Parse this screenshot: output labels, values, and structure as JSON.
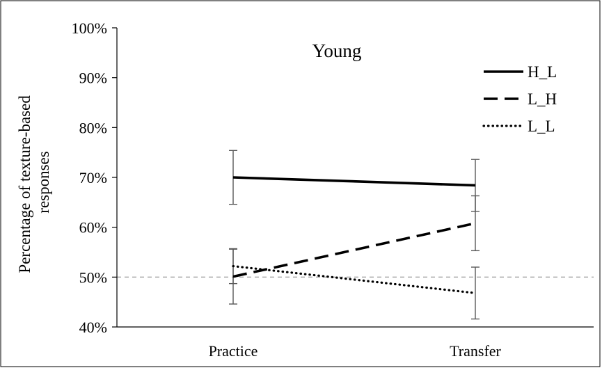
{
  "chart_data": {
    "type": "line",
    "title": "Young",
    "xlabel": "",
    "ylabel": [
      "Percentage  of texture-based",
      "responses"
    ],
    "categories": [
      "Practice",
      "Transfer"
    ],
    "ylim": [
      0.4,
      1.0
    ],
    "yticks": [
      0.4,
      0.5,
      0.6,
      0.7,
      0.8,
      0.9,
      1.0
    ],
    "ytick_labels": [
      "40%",
      "50%",
      "60%",
      "70%",
      "80%",
      "90%",
      "100%"
    ],
    "grid": false,
    "legend_position": "top-right",
    "reference_line": {
      "value": 0.5,
      "color": "#a6a6a6",
      "style": "dashed"
    },
    "series": [
      {
        "name": "H_L",
        "style": "solid",
        "color": "#000000",
        "values": [
          0.7,
          0.684
        ],
        "errors": [
          0.054,
          0.052
        ]
      },
      {
        "name": "L_H",
        "style": "dashed",
        "color": "#000000",
        "values": [
          0.501,
          0.608
        ],
        "errors": [
          0.055,
          0.055
        ]
      },
      {
        "name": "L_L",
        "style": "dotted",
        "color": "#000000",
        "values": [
          0.522,
          0.468
        ],
        "errors": [
          0.035,
          0.052
        ]
      }
    ],
    "error_bar_color": "#595959"
  }
}
